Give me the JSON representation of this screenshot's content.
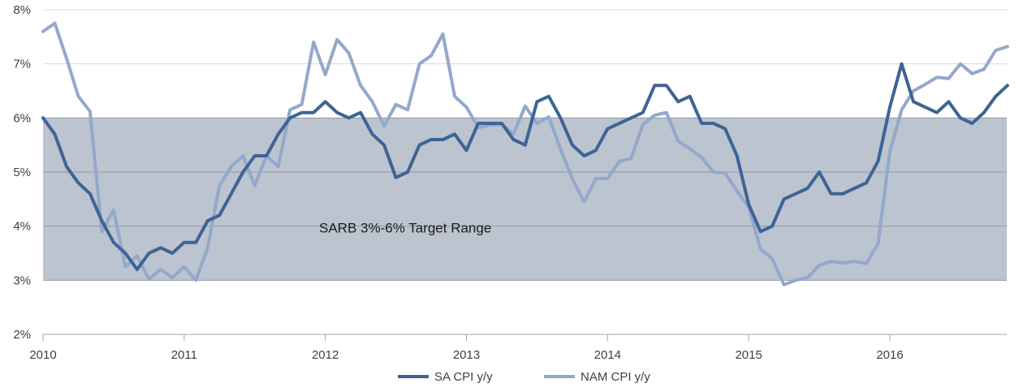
{
  "chart_data": {
    "type": "line",
    "title": "",
    "xlabel": "",
    "ylabel": "",
    "ylim": [
      2,
      8
    ],
    "y_ticks": [
      "2%",
      "3%",
      "4%",
      "5%",
      "6%",
      "7%",
      "8%"
    ],
    "x_ticks": [
      "2010",
      "2011",
      "2012",
      "2013",
      "2014",
      "2015",
      "2016"
    ],
    "grid": "horizontal",
    "legend_position": "bottom-center",
    "band": {
      "label": "SARB 3%-6% Target Range",
      "range": [
        3,
        6
      ],
      "color": "#bcc4d0"
    },
    "series": [
      {
        "name": "SA CPI y/y",
        "color": "#3e6494",
        "values": [
          6.0,
          5.7,
          5.1,
          4.8,
          4.6,
          4.1,
          3.7,
          3.5,
          3.2,
          3.5,
          3.6,
          3.5,
          3.7,
          3.7,
          4.1,
          4.2,
          4.6,
          5.0,
          5.3,
          5.3,
          5.7,
          6.0,
          6.1,
          6.1,
          6.3,
          6.1,
          6.0,
          6.1,
          5.7,
          5.5,
          4.9,
          5.0,
          5.5,
          5.6,
          5.6,
          5.7,
          5.4,
          5.9,
          5.9,
          5.9,
          5.6,
          5.5,
          6.3,
          6.4,
          6.0,
          5.5,
          5.3,
          5.4,
          5.8,
          5.9,
          6.0,
          6.1,
          6.6,
          6.6,
          6.3,
          6.4,
          5.9,
          5.9,
          5.8,
          5.3,
          4.4,
          3.9,
          4.0,
          4.5,
          4.6,
          4.7,
          5.0,
          4.6,
          4.6,
          4.7,
          4.8,
          5.2,
          6.2,
          7.0,
          6.3,
          6.2,
          6.1,
          6.3,
          6.0,
          5.9,
          6.1,
          6.4,
          6.6
        ]
      },
      {
        "name": "NAM CPI y/y",
        "color": "#94a8cb",
        "values": [
          7.6,
          7.75,
          7.1,
          6.4,
          6.12,
          3.9,
          4.3,
          3.25,
          3.45,
          3.02,
          3.2,
          3.05,
          3.25,
          3.0,
          3.6,
          4.75,
          5.1,
          5.3,
          4.75,
          5.3,
          5.1,
          6.15,
          6.25,
          7.4,
          6.8,
          7.45,
          7.2,
          6.6,
          6.3,
          5.85,
          6.25,
          6.15,
          7.0,
          7.15,
          7.55,
          6.4,
          6.2,
          5.82,
          5.87,
          5.88,
          5.7,
          6.22,
          5.9,
          6.02,
          5.42,
          4.88,
          4.45,
          4.88,
          4.88,
          5.2,
          5.25,
          5.88,
          6.05,
          6.1,
          5.57,
          5.43,
          5.27,
          5.0,
          4.98,
          4.65,
          4.35,
          3.58,
          3.4,
          2.92,
          3.0,
          3.05,
          3.28,
          3.35,
          3.32,
          3.35,
          3.31,
          3.68,
          5.38,
          6.15,
          6.5,
          6.62,
          6.75,
          6.73,
          7.0,
          6.82,
          6.9,
          7.25,
          7.32
        ]
      }
    ]
  }
}
